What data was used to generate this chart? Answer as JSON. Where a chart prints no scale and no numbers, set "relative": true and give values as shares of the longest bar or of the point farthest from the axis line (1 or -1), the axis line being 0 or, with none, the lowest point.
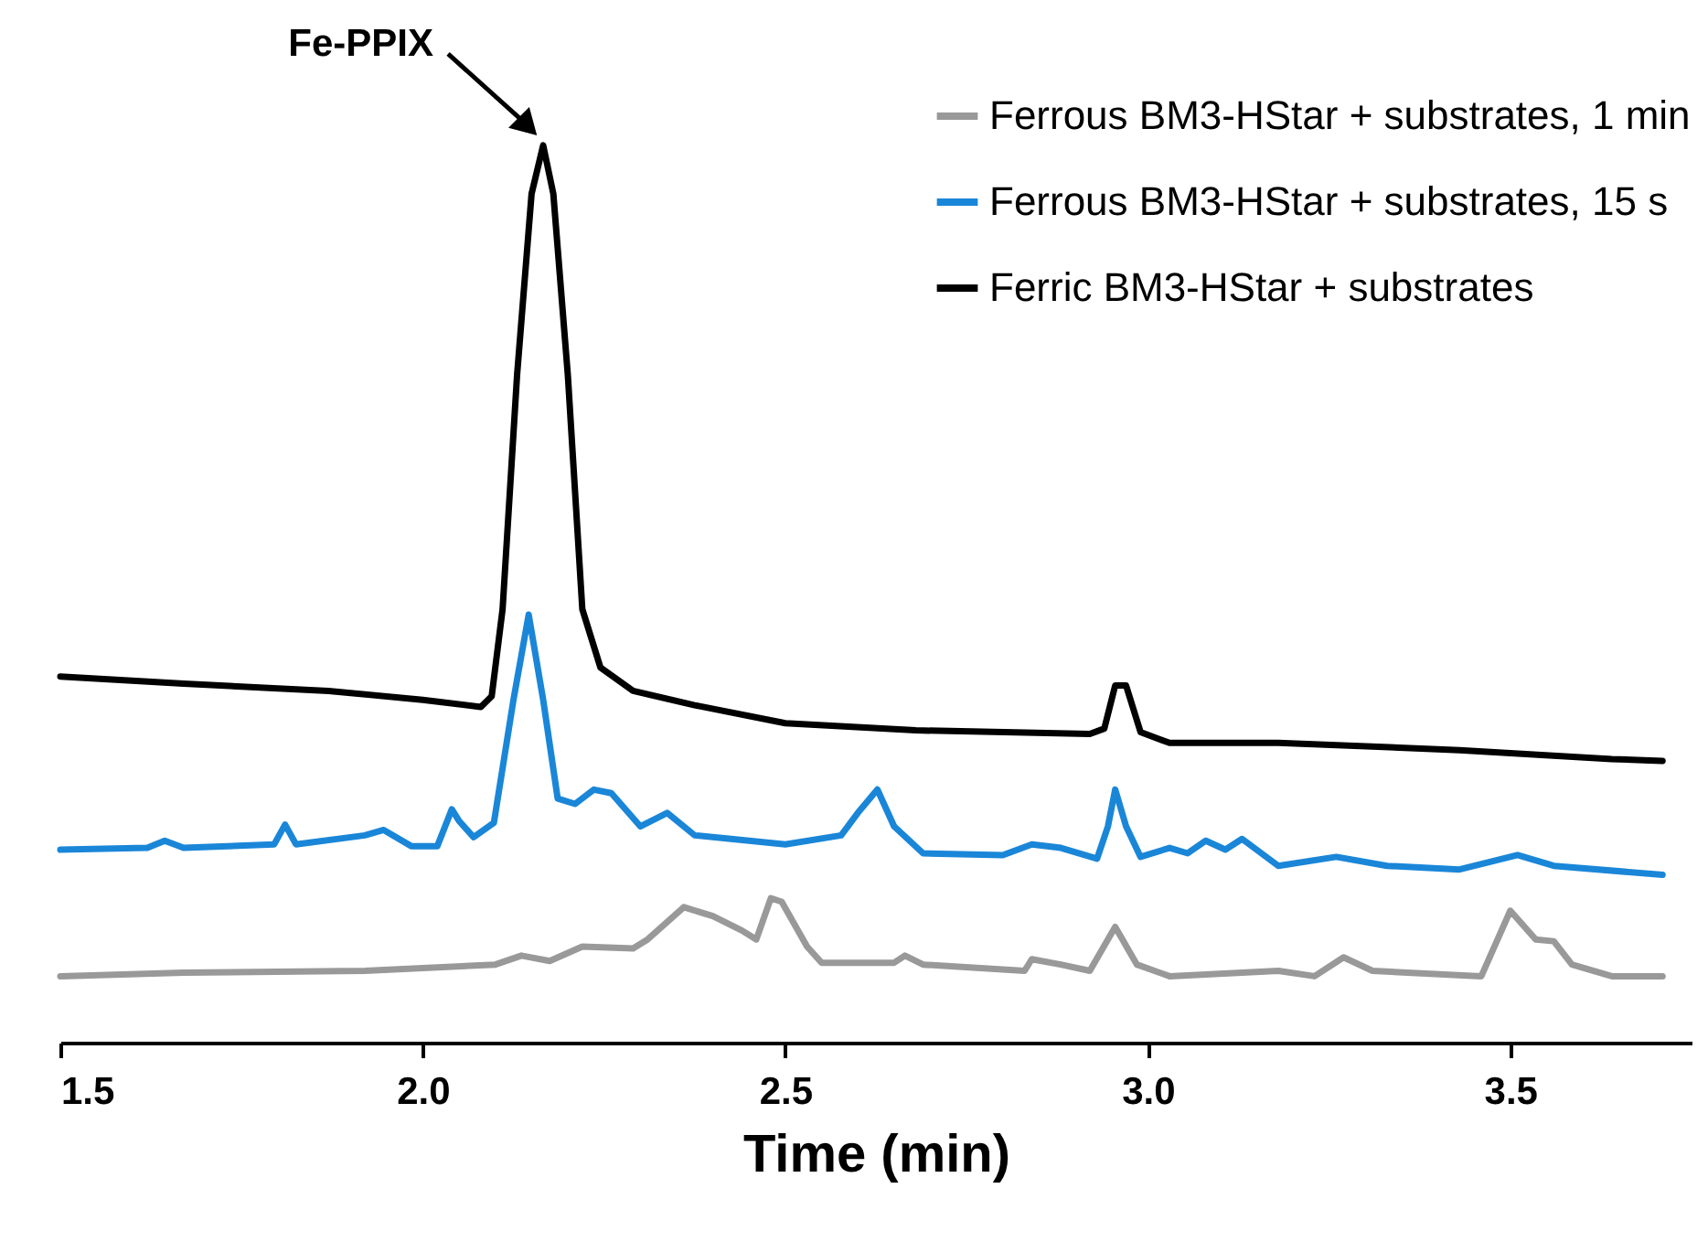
{
  "chart_data": {
    "type": "line",
    "relative": true,
    "xlabel": "Time (min)",
    "xlim": [
      1.5,
      3.75
    ],
    "xticks": [
      {
        "value": 1.5,
        "label": "1.5"
      },
      {
        "value": 2,
        "label": "2.0"
      },
      {
        "value": 2.5,
        "label": "2.5"
      },
      {
        "value": 3,
        "label": "3.0"
      },
      {
        "value": 3.5,
        "label": "3.5"
      }
    ],
    "legend": "top right",
    "grid": false,
    "marker": "none",
    "line_style": "solid",
    "annotations": [
      "Fe-PPIX"
    ],
    "series": [
      {
        "name": "Ferrous BM3-HStar + substrates, 1 min",
        "color": "#999999",
        "x": [
          1.5,
          1.67,
          1.92,
          2.1,
          2.136,
          2.175,
          2.22,
          2.29,
          2.31,
          2.36,
          2.4,
          2.44,
          2.46,
          2.48,
          2.495,
          2.53,
          2.55,
          2.65,
          2.665,
          2.69,
          2.83,
          2.84,
          2.88,
          2.92,
          2.955,
          2.985,
          3.03,
          3.18,
          3.23,
          3.27,
          3.31,
          3.46,
          3.5,
          3.535,
          3.56,
          3.585,
          3.64,
          3.71
        ],
        "values": [
          0.074,
          0.078,
          0.08,
          0.087,
          0.097,
          0.091,
          0.107,
          0.105,
          0.115,
          0.151,
          0.141,
          0.125,
          0.115,
          0.161,
          0.157,
          0.107,
          0.089,
          0.089,
          0.097,
          0.087,
          0.08,
          0.093,
          0.087,
          0.08,
          0.129,
          0.087,
          0.074,
          0.08,
          0.074,
          0.095,
          0.08,
          0.074,
          0.147,
          0.115,
          0.113,
          0.087,
          0.074,
          0.074
        ]
      },
      {
        "name": "Ferrous BM3-HStar + substrates, 15 s",
        "color": "#1a86d8",
        "x": [
          1.5,
          1.62,
          1.644,
          1.67,
          1.795,
          1.81,
          1.825,
          1.92,
          1.946,
          1.984,
          2.02,
          2.04,
          2.05,
          2.07,
          2.098,
          2.125,
          2.146,
          2.166,
          2.186,
          2.21,
          2.236,
          2.26,
          2.3,
          2.337,
          2.375,
          2.425,
          2.5,
          2.577,
          2.6,
          2.627,
          2.65,
          2.69,
          2.8,
          2.84,
          2.88,
          2.93,
          2.945,
          2.955,
          2.97,
          2.99,
          3.03,
          3.055,
          3.08,
          3.107,
          3.13,
          3.18,
          3.26,
          3.33,
          3.43,
          3.51,
          3.56,
          3.71
        ],
        "values": [
          0.215,
          0.217,
          0.225,
          0.217,
          0.221,
          0.243,
          0.221,
          0.231,
          0.237,
          0.219,
          0.219,
          0.26,
          0.247,
          0.229,
          0.245,
          0.382,
          0.477,
          0.382,
          0.272,
          0.266,
          0.282,
          0.278,
          0.241,
          0.256,
          0.231,
          0.227,
          0.221,
          0.231,
          0.256,
          0.282,
          0.241,
          0.211,
          0.209,
          0.221,
          0.217,
          0.205,
          0.241,
          0.282,
          0.241,
          0.207,
          0.217,
          0.211,
          0.225,
          0.215,
          0.227,
          0.197,
          0.207,
          0.197,
          0.193,
          0.209,
          0.197,
          0.187
        ]
      },
      {
        "name": "Ferric BM3-HStar + substrates",
        "color": "#000000",
        "x": [
          1.5,
          1.67,
          1.87,
          2.0,
          2.08,
          2.095,
          2.11,
          2.13,
          2.15,
          2.166,
          2.18,
          2.2,
          2.22,
          2.245,
          2.29,
          2.375,
          2.5,
          2.68,
          2.92,
          2.94,
          2.955,
          2.97,
          2.99,
          3.03,
          3.18,
          3.43,
          3.64,
          3.71
        ],
        "values": [
          0.408,
          0.4,
          0.392,
          0.382,
          0.374,
          0.386,
          0.483,
          0.744,
          0.946,
          1.0,
          0.946,
          0.744,
          0.483,
          0.418,
          0.392,
          0.376,
          0.356,
          0.348,
          0.344,
          0.35,
          0.398,
          0.398,
          0.346,
          0.334,
          0.334,
          0.326,
          0.316,
          0.314
        ]
      }
    ]
  }
}
